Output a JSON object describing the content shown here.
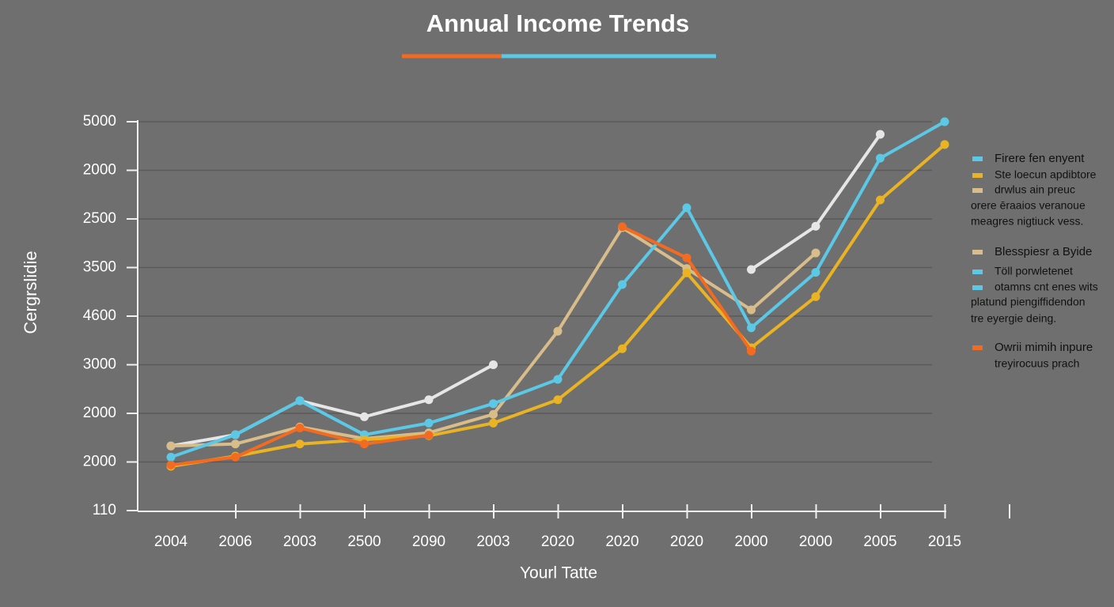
{
  "chart_data": {
    "type": "line",
    "title": "Annual Income Trends",
    "x_label": "Yourl Tatte",
    "y_label": "Cergrslidie",
    "categories": [
      "2004",
      "2006",
      "2003",
      "2500",
      "2090",
      "2003",
      "2020",
      "2020",
      "2020",
      "2000",
      "2000",
      "2005",
      "2015"
    ],
    "ylim": [
      0,
      8
    ],
    "yticks": [
      {
        "value": 0,
        "label": "110"
      },
      {
        "value": 1,
        "label": "2000"
      },
      {
        "value": 2,
        "label": "2000"
      },
      {
        "value": 3,
        "label": "3000"
      },
      {
        "value": 4,
        "label": "4600"
      },
      {
        "value": 5,
        "label": "3500"
      },
      {
        "value": 6,
        "label": "2500"
      },
      {
        "value": 7,
        "label": "2000"
      },
      {
        "value": 8,
        "label": "5000"
      }
    ],
    "grid": true,
    "series": [
      {
        "color": "#e6e6e6",
        "values": [
          1.33,
          1.56,
          2.26,
          1.93,
          2.28,
          3.0,
          null,
          null,
          null,
          4.96,
          5.85,
          7.74,
          null
        ]
      },
      {
        "color": "#d8bd8a",
        "values": [
          1.33,
          1.37,
          1.72,
          1.48,
          1.6,
          1.98,
          3.69,
          5.82,
          4.98,
          4.13,
          5.3,
          null,
          null
        ]
      },
      {
        "color": "#5bc8e6",
        "values": [
          1.1,
          1.56,
          2.26,
          1.56,
          1.8,
          2.2,
          2.7,
          4.65,
          6.23,
          3.76,
          4.9,
          7.25,
          8.0
        ]
      },
      {
        "color": "#eab323",
        "values": [
          0.91,
          1.12,
          1.37,
          1.46,
          1.54,
          1.8,
          2.28,
          3.33,
          4.89,
          3.35,
          4.4,
          6.39,
          7.53
        ]
      },
      {
        "color": "#f26b21",
        "values": [
          0.94,
          1.1,
          1.7,
          1.37,
          1.55,
          null,
          null,
          5.84,
          5.2,
          3.28,
          null,
          null,
          null
        ]
      }
    ],
    "legend": [
      {
        "color": "#5bc8e6",
        "text": "Firere fen enyent"
      },
      {
        "color": "#eab323",
        "text": "Ste loecun apdibtore"
      },
      {
        "color": "#d8bd8a",
        "text": "drwlus ain preuc"
      },
      {
        "color": null,
        "text": "orere ēraaios veranoue"
      },
      {
        "color": null,
        "text": "meagres nigtiuck vess."
      },
      {
        "color": "#d8bd8a",
        "text": "Blesspiesr a Byide"
      },
      {
        "color": "#5bc8e6",
        "text": "Töll porwletenet"
      },
      {
        "color": "#5bc8e6",
        "text": "otamns cnt enes wits"
      },
      {
        "color": null,
        "text": "platund piengiffidendon"
      },
      {
        "color": null,
        "text": "tre eyergie deing."
      },
      {
        "color": "#f26b21",
        "text": "Owrii mimih inpure"
      },
      {
        "color": null,
        "text": "treyirocuus prach"
      }
    ]
  }
}
